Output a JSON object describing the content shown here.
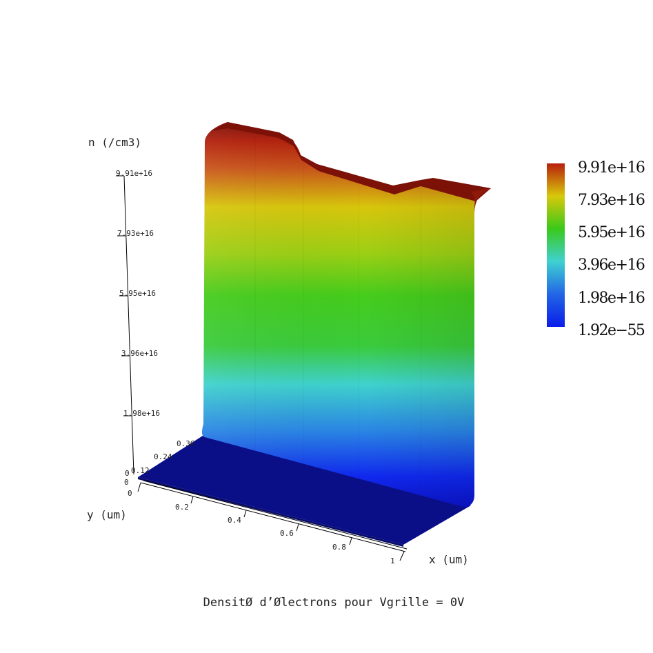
{
  "chart_data": {
    "type": "surface",
    "title": "DensitØ d’Ølectrons pour Vgrille = 0V",
    "zlabel": "n (/cm3)",
    "xlabel": "x (um)",
    "ylabel": "y (um)",
    "z_ticks": [
      "9.91e+16",
      "7.93e+16",
      "5.95e+16",
      "3.96e+16",
      "1.98e+16",
      "0"
    ],
    "x_ticks": [
      "0",
      "0.2",
      "0.4",
      "0.6",
      "0.8",
      "1"
    ],
    "y_ticks": [
      "0",
      "0.12",
      "0.24",
      "0.36"
    ],
    "colorbar": {
      "labels": [
        "9.91e+16",
        "7.93e+16",
        "5.95e+16",
        "3.96e+16",
        "1.98e+16",
        "1.92e−55"
      ],
      "colors": [
        "#b71f0c",
        "#d8c80b",
        "#3ac91a",
        "#3fd1d0",
        "#2266e6",
        "#0a1de8"
      ]
    }
  }
}
